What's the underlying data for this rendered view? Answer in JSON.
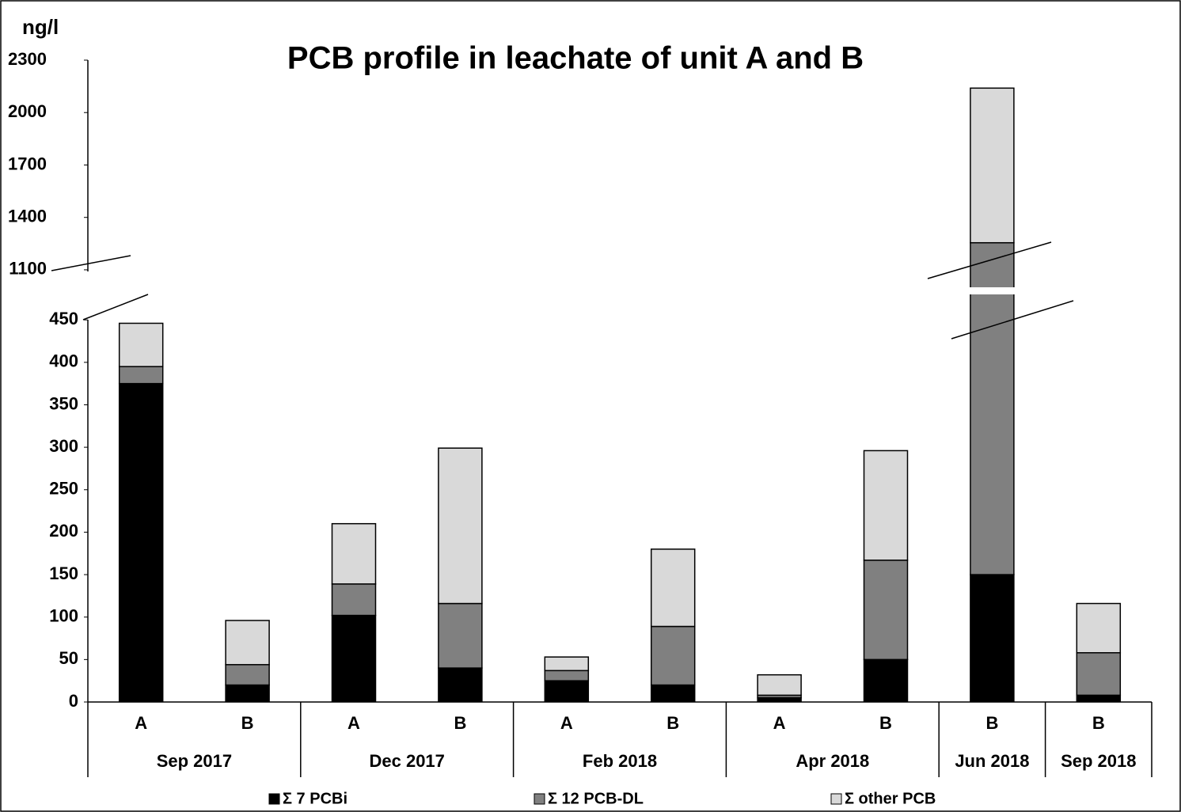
{
  "chart_data": {
    "type": "stacked_bar_broken_axis",
    "title": "PCB profile in leachate of unit A and B",
    "y_label": "ng/l",
    "groups": [
      {
        "label": "Sep 2017",
        "categories": [
          "A",
          "B"
        ]
      },
      {
        "label": "Dec 2017",
        "categories": [
          "A",
          "B"
        ]
      },
      {
        "label": "Feb 2018",
        "categories": [
          "A",
          "B"
        ]
      },
      {
        "label": "Apr 2018",
        "categories": [
          "A",
          "B"
        ]
      },
      {
        "label": "Jun 2018",
        "categories": [
          "B"
        ]
      },
      {
        "label": "Sep 2018",
        "categories": [
          "B"
        ]
      }
    ],
    "series": [
      {
        "name": "Σ 7 PCBi",
        "color": "#000000",
        "values": [
          375,
          20,
          102,
          40,
          25,
          20,
          5,
          50,
          150,
          8
        ]
      },
      {
        "name": "Σ 12 PCB-DL",
        "color": "#808080",
        "values": [
          20,
          24,
          37,
          76,
          12,
          69,
          3,
          117,
          1105,
          50
        ]
      },
      {
        "name": "Σ other PCB",
        "color": "#d9d9d9",
        "values": [
          51,
          52,
          71,
          183,
          16,
          91,
          24,
          129,
          885,
          58
        ]
      }
    ],
    "ylim": [
      0,
      480
    ],
    "yticks": [
      0,
      50,
      100,
      150,
      200,
      250,
      300,
      350,
      400,
      450
    ],
    "y2lim": [
      1000,
      2300
    ],
    "y2ticks": [
      1100,
      1400,
      1700,
      2000,
      2300
    ],
    "legend": "bottom"
  }
}
